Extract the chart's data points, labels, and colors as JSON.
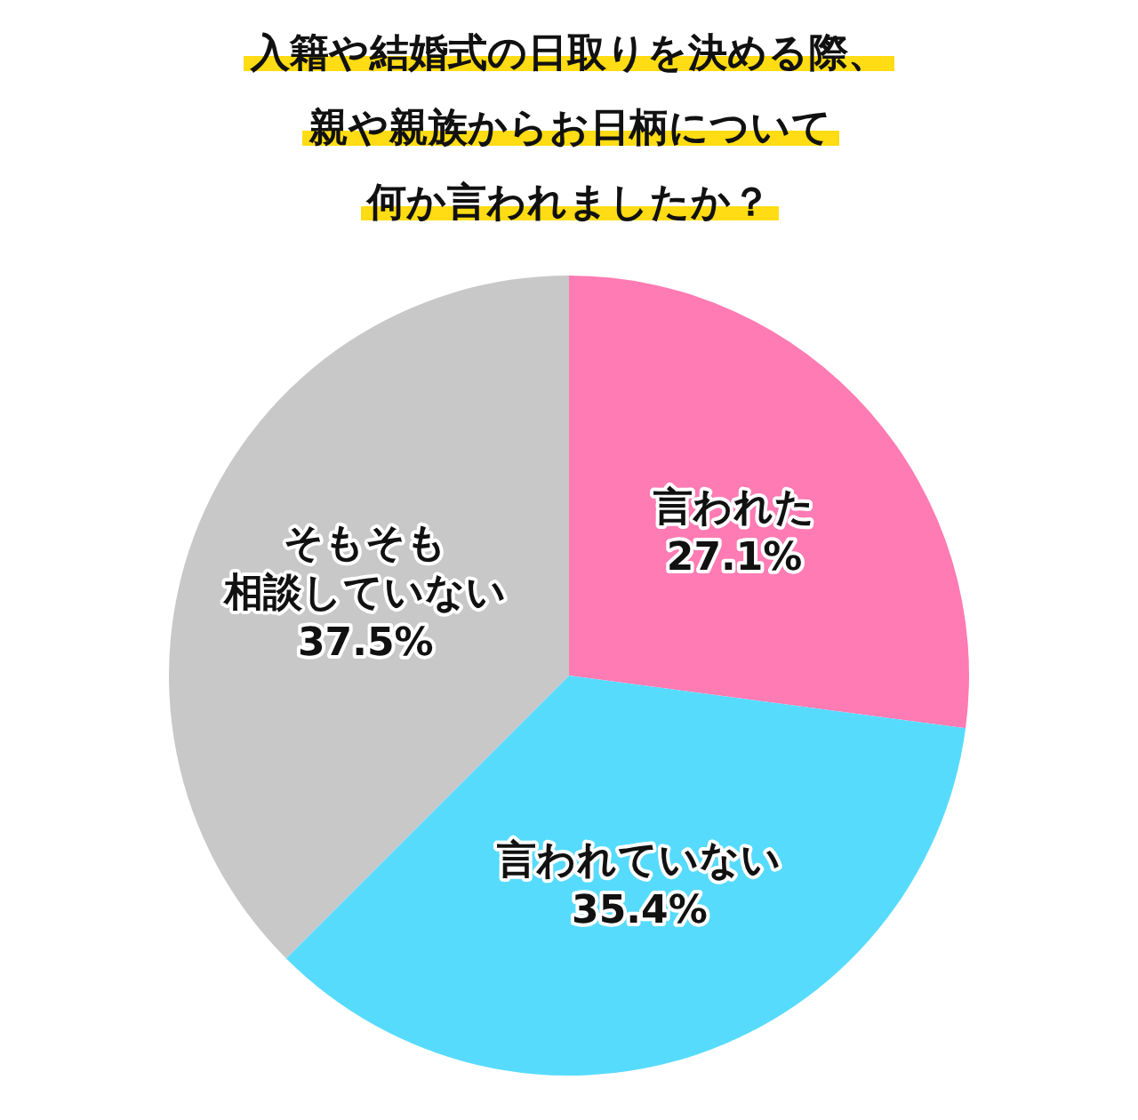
{
  "chart_data": {
    "type": "pie",
    "title": "入籍や結婚式の日取りを決める際、親や親族からお日柄について何か言われましたか？",
    "categories": [
      "言われた",
      "言われていない",
      "そもそも相談していない"
    ],
    "values": [
      27.1,
      35.4,
      37.5
    ],
    "value_labels": [
      "27.1%",
      "35.4%",
      "37.5%"
    ],
    "colors": [
      "#ff7bb3",
      "#57dbfd",
      "#c8c8c8"
    ]
  }
}
